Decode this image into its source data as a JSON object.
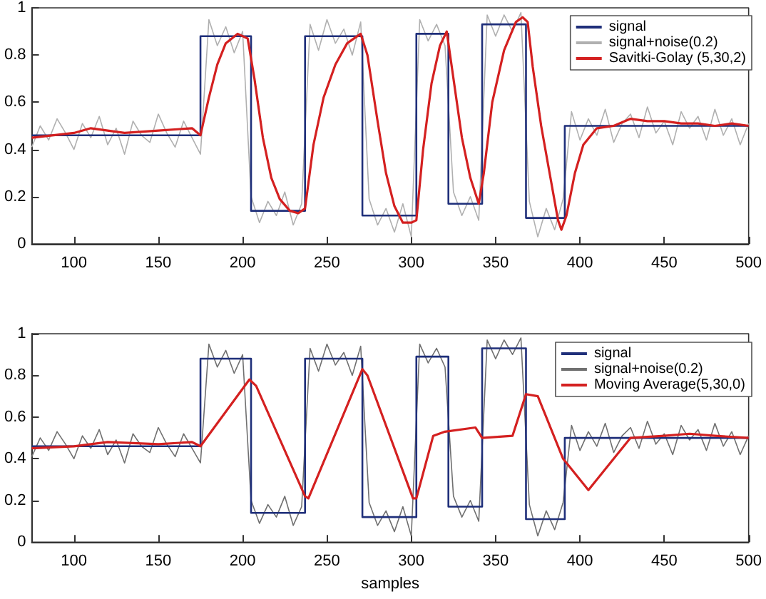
{
  "chart_data": [
    {
      "type": "line",
      "xlim": [
        75,
        500
      ],
      "ylim": [
        0,
        1
      ],
      "xticks": [
        100,
        150,
        200,
        250,
        300,
        350,
        400,
        450,
        500
      ],
      "yticks": [
        0,
        0.2,
        0.4,
        0.6,
        0.8,
        1
      ],
      "legend": "top right",
      "marker": "none",
      "series": [
        {
          "name": "signal",
          "type": "step",
          "color": "#1f2f7a",
          "x": [
            75,
            175,
            205,
            237,
            271,
            303,
            322,
            342,
            368,
            391,
            500
          ],
          "values": [
            0.46,
            0.88,
            0.14,
            0.88,
            0.12,
            0.89,
            0.17,
            0.93,
            0.11,
            0.5,
            0.5
          ]
        },
        {
          "name": "signal+noise(0.2)",
          "color": "#b0b0b0",
          "x": [
            75,
            80,
            85,
            90,
            95,
            100,
            105,
            110,
            115,
            120,
            125,
            130,
            135,
            140,
            145,
            150,
            155,
            160,
            165,
            170,
            175,
            180,
            185,
            190,
            195,
            200,
            205,
            210,
            215,
            220,
            225,
            230,
            235,
            240,
            245,
            250,
            255,
            260,
            265,
            270,
            275,
            280,
            285,
            290,
            295,
            300,
            305,
            310,
            315,
            320,
            325,
            330,
            335,
            340,
            345,
            350,
            355,
            360,
            365,
            370,
            375,
            380,
            385,
            390,
            395,
            400,
            405,
            410,
            415,
            420,
            425,
            430,
            435,
            440,
            445,
            450,
            455,
            460,
            465,
            470,
            475,
            480,
            485,
            490,
            495,
            500
          ],
          "values": [
            0.41,
            0.5,
            0.44,
            0.53,
            0.47,
            0.4,
            0.51,
            0.45,
            0.54,
            0.42,
            0.49,
            0.38,
            0.52,
            0.46,
            0.43,
            0.55,
            0.47,
            0.41,
            0.52,
            0.45,
            0.38,
            0.95,
            0.84,
            0.92,
            0.81,
            0.9,
            0.2,
            0.09,
            0.18,
            0.12,
            0.22,
            0.08,
            0.17,
            0.93,
            0.82,
            0.95,
            0.85,
            0.91,
            0.8,
            0.94,
            0.19,
            0.08,
            0.15,
            0.05,
            0.17,
            0.03,
            0.95,
            0.86,
            0.93,
            0.84,
            0.22,
            0.12,
            0.2,
            0.1,
            0.97,
            0.88,
            0.97,
            0.9,
            0.98,
            0.18,
            0.03,
            0.15,
            0.06,
            0.19,
            0.56,
            0.44,
            0.53,
            0.46,
            0.57,
            0.43,
            0.51,
            0.55,
            0.45,
            0.58,
            0.47,
            0.52,
            0.42,
            0.56,
            0.49,
            0.54,
            0.44,
            0.57,
            0.46,
            0.53,
            0.42,
            0.51
          ]
        },
        {
          "name": "Savitki-Golay (5,30,2)",
          "color": "#d42020",
          "x": [
            75,
            100,
            110,
            130,
            150,
            170,
            175,
            180,
            185,
            190,
            197,
            203,
            207,
            212,
            217,
            222,
            228,
            233,
            237,
            242,
            248,
            255,
            262,
            270,
            274,
            280,
            285,
            290,
            295,
            300,
            303,
            307,
            312,
            317,
            321,
            325,
            330,
            335,
            340,
            343,
            348,
            355,
            362,
            366,
            369,
            372,
            377,
            382,
            387,
            389,
            392,
            397,
            402,
            410,
            420,
            430,
            440,
            450,
            460,
            470,
            480,
            490,
            500
          ],
          "values": [
            0.45,
            0.47,
            0.49,
            0.47,
            0.48,
            0.49,
            0.46,
            0.62,
            0.76,
            0.85,
            0.89,
            0.87,
            0.7,
            0.45,
            0.28,
            0.19,
            0.14,
            0.13,
            0.15,
            0.42,
            0.62,
            0.76,
            0.85,
            0.89,
            0.8,
            0.52,
            0.3,
            0.16,
            0.09,
            0.09,
            0.1,
            0.4,
            0.68,
            0.84,
            0.9,
            0.7,
            0.45,
            0.28,
            0.17,
            0.3,
            0.6,
            0.82,
            0.94,
            0.96,
            0.94,
            0.75,
            0.5,
            0.3,
            0.1,
            0.06,
            0.12,
            0.3,
            0.42,
            0.49,
            0.5,
            0.53,
            0.52,
            0.52,
            0.51,
            0.51,
            0.5,
            0.51,
            0.5
          ]
        }
      ]
    },
    {
      "type": "line",
      "xlabel": "samples",
      "xlim": [
        75,
        500
      ],
      "ylim": [
        0,
        1
      ],
      "xticks": [
        100,
        150,
        200,
        250,
        300,
        350,
        400,
        450,
        500
      ],
      "yticks": [
        0,
        0.2,
        0.4,
        0.6,
        0.8,
        1
      ],
      "legend": "top right",
      "marker": "none",
      "series": [
        {
          "name": "signal",
          "type": "step",
          "color": "#1f2f7a",
          "x": [
            75,
            175,
            205,
            237,
            271,
            303,
            322,
            342,
            368,
            391,
            500
          ],
          "values": [
            0.46,
            0.88,
            0.14,
            0.88,
            0.12,
            0.89,
            0.17,
            0.93,
            0.11,
            0.5,
            0.5
          ]
        },
        {
          "name": "signal+noise(0.2)",
          "color": "#707070",
          "x": [
            75,
            80,
            85,
            90,
            95,
            100,
            105,
            110,
            115,
            120,
            125,
            130,
            135,
            140,
            145,
            150,
            155,
            160,
            165,
            170,
            175,
            180,
            185,
            190,
            195,
            200,
            205,
            210,
            215,
            220,
            225,
            230,
            235,
            240,
            245,
            250,
            255,
            260,
            265,
            270,
            275,
            280,
            285,
            290,
            295,
            300,
            305,
            310,
            315,
            320,
            325,
            330,
            335,
            340,
            345,
            350,
            355,
            360,
            365,
            370,
            375,
            380,
            385,
            390,
            395,
            400,
            405,
            410,
            415,
            420,
            425,
            430,
            435,
            440,
            445,
            450,
            455,
            460,
            465,
            470,
            475,
            480,
            485,
            490,
            495,
            500
          ],
          "values": [
            0.41,
            0.5,
            0.44,
            0.53,
            0.47,
            0.4,
            0.51,
            0.45,
            0.54,
            0.42,
            0.49,
            0.38,
            0.52,
            0.46,
            0.43,
            0.55,
            0.47,
            0.41,
            0.52,
            0.45,
            0.38,
            0.95,
            0.84,
            0.92,
            0.81,
            0.9,
            0.2,
            0.09,
            0.18,
            0.12,
            0.22,
            0.08,
            0.17,
            0.93,
            0.82,
            0.95,
            0.85,
            0.91,
            0.8,
            0.94,
            0.19,
            0.08,
            0.15,
            0.05,
            0.17,
            0.03,
            0.95,
            0.86,
            0.93,
            0.84,
            0.22,
            0.12,
            0.2,
            0.1,
            0.97,
            0.88,
            0.97,
            0.9,
            0.98,
            0.18,
            0.03,
            0.15,
            0.06,
            0.19,
            0.56,
            0.44,
            0.53,
            0.46,
            0.57,
            0.43,
            0.51,
            0.55,
            0.45,
            0.58,
            0.47,
            0.52,
            0.42,
            0.56,
            0.49,
            0.54,
            0.44,
            0.57,
            0.46,
            0.53,
            0.42,
            0.51
          ]
        },
        {
          "name": "Moving Average(5,30,0)",
          "color": "#d42020",
          "x": [
            75,
            100,
            120,
            150,
            170,
            175,
            204,
            208,
            237,
            239,
            271,
            274,
            301,
            303,
            313,
            320,
            338,
            342,
            360,
            368,
            375,
            390,
            405,
            420,
            430,
            450,
            465,
            480,
            500
          ],
          "values": [
            0.45,
            0.46,
            0.48,
            0.47,
            0.48,
            0.46,
            0.78,
            0.75,
            0.22,
            0.21,
            0.83,
            0.8,
            0.21,
            0.21,
            0.51,
            0.53,
            0.55,
            0.5,
            0.51,
            0.71,
            0.7,
            0.4,
            0.25,
            0.4,
            0.5,
            0.51,
            0.52,
            0.51,
            0.5
          ]
        }
      ]
    }
  ]
}
